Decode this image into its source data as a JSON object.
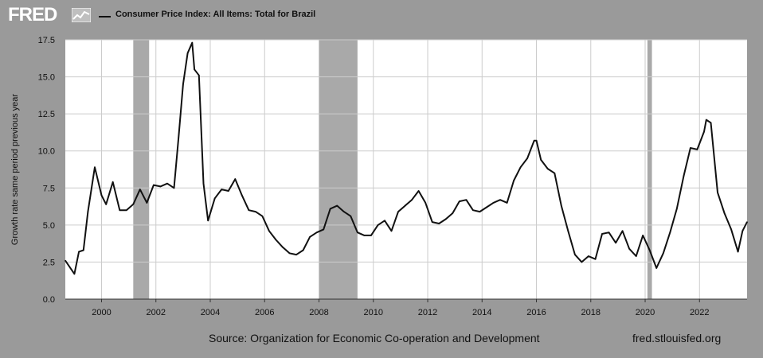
{
  "header": {
    "logo_text": "FRED",
    "legend_label": "Consumer Price Index: All Items: Total for Brazil"
  },
  "footer": {
    "source": "Source: Organization for Economic Co-operation and Development",
    "url": "fred.stlouisfed.org"
  },
  "colors": {
    "background": "#9a9a9a",
    "plot_background": "#ffffff",
    "line": "#111111",
    "recession": "#a9a9a9",
    "gridline": "#cccccc"
  },
  "chart_data": {
    "type": "line",
    "title": "",
    "xlabel": "",
    "ylabel": "Growth rate same period previous year",
    "ylim": [
      0,
      17.5
    ],
    "xlim": [
      "1998-09-01",
      "2023-10-01"
    ],
    "grid": true,
    "legend_position": "top-left",
    "y_ticks": [
      "0.0",
      "2.5",
      "5.0",
      "7.5",
      "10.0",
      "12.5",
      "15.0",
      "17.5"
    ],
    "x_ticks": [
      "2000",
      "2002",
      "2004",
      "2006",
      "2008",
      "2010",
      "2012",
      "2014",
      "2016",
      "2018",
      "2020",
      "2022"
    ],
    "recessions": [
      [
        "2001-03-01",
        "2001-10-01"
      ],
      [
        "2008-01-01",
        "2009-06-01"
      ],
      [
        "2020-02-01",
        "2020-04-01"
      ]
    ],
    "series": [
      {
        "name": "Consumer Price Index: All Items: Total for Brazil",
        "x": [
          "1998-09",
          "1999-01",
          "1999-03",
          "1999-05",
          "1999-07",
          "1999-10",
          "2000-01",
          "2000-03",
          "2000-06",
          "2000-09",
          "2000-12",
          "2001-03",
          "2001-06",
          "2001-09",
          "2001-12",
          "2002-03",
          "2002-06",
          "2002-09",
          "2002-11",
          "2003-01",
          "2003-03",
          "2003-05",
          "2003-06",
          "2003-08",
          "2003-10",
          "2003-12",
          "2004-03",
          "2004-06",
          "2004-09",
          "2004-12",
          "2005-03",
          "2005-06",
          "2005-09",
          "2005-12",
          "2006-03",
          "2006-06",
          "2006-09",
          "2006-12",
          "2007-03",
          "2007-06",
          "2007-09",
          "2007-12",
          "2008-03",
          "2008-06",
          "2008-09",
          "2008-12",
          "2009-03",
          "2009-06",
          "2009-09",
          "2009-12",
          "2010-03",
          "2010-06",
          "2010-09",
          "2010-12",
          "2011-03",
          "2011-06",
          "2011-09",
          "2011-12",
          "2012-03",
          "2012-06",
          "2012-09",
          "2012-12",
          "2013-03",
          "2013-06",
          "2013-09",
          "2013-12",
          "2014-03",
          "2014-06",
          "2014-09",
          "2014-12",
          "2015-03",
          "2015-06",
          "2015-09",
          "2015-12",
          "2016-01",
          "2016-03",
          "2016-06",
          "2016-09",
          "2016-12",
          "2017-03",
          "2017-06",
          "2017-09",
          "2017-12",
          "2018-03",
          "2018-06",
          "2018-09",
          "2018-12",
          "2019-03",
          "2019-06",
          "2019-09",
          "2019-12",
          "2020-03",
          "2020-06",
          "2020-09",
          "2020-12",
          "2021-03",
          "2021-06",
          "2021-09",
          "2021-12",
          "2022-03",
          "2022-04",
          "2022-06",
          "2022-09",
          "2022-12",
          "2023-03",
          "2023-06",
          "2023-08",
          "2023-10"
        ],
        "values": [
          2.6,
          1.7,
          3.2,
          3.3,
          5.9,
          8.9,
          7.0,
          6.4,
          7.9,
          6.0,
          6.0,
          6.4,
          7.4,
          6.5,
          7.7,
          7.6,
          7.8,
          7.5,
          10.9,
          14.5,
          16.6,
          17.3,
          15.5,
          15.1,
          7.8,
          5.3,
          6.8,
          7.4,
          7.3,
          8.1,
          7.0,
          6.0,
          5.9,
          5.6,
          4.6,
          4.0,
          3.5,
          3.1,
          3.0,
          3.3,
          4.2,
          4.5,
          4.7,
          6.1,
          6.3,
          5.9,
          5.6,
          4.5,
          4.3,
          4.3,
          5.0,
          5.3,
          4.6,
          5.9,
          6.3,
          6.7,
          7.3,
          6.5,
          5.2,
          5.1,
          5.4,
          5.8,
          6.6,
          6.7,
          6.0,
          5.9,
          6.2,
          6.5,
          6.7,
          6.5,
          8.0,
          8.9,
          9.5,
          10.7,
          10.7,
          9.4,
          8.8,
          8.5,
          6.3,
          4.6,
          3.0,
          2.5,
          2.9,
          2.7,
          4.4,
          4.5,
          3.8,
          4.6,
          3.4,
          2.9,
          4.3,
          3.3,
          2.1,
          3.1,
          4.5,
          6.1,
          8.3,
          10.2,
          10.1,
          11.3,
          12.1,
          11.9,
          7.2,
          5.8,
          4.7,
          3.2,
          4.6,
          5.2
        ]
      }
    ]
  }
}
